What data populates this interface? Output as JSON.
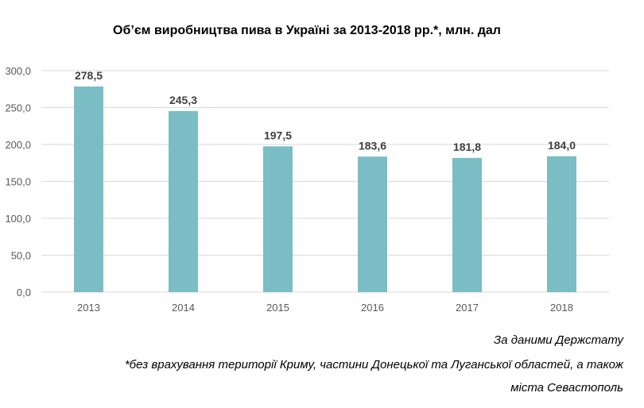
{
  "chart_data": {
    "type": "bar",
    "title": "Об’єм виробництва пива в Україні за 2013-2018 рр.*, млн. дал",
    "categories": [
      "2013",
      "2014",
      "2015",
      "2016",
      "2017",
      "2018"
    ],
    "values": [
      278.5,
      245.3,
      197.5,
      183.6,
      181.8,
      184.0
    ],
    "value_labels": [
      "278,5",
      "245,3",
      "197,5",
      "183,6",
      "181,8",
      "184,0"
    ],
    "yticks": [
      0,
      50,
      100,
      150,
      200,
      250,
      300
    ],
    "ytick_labels": [
      "0,0",
      "50,0",
      "100,0",
      "150,0",
      "200,0",
      "250,0",
      "300,0"
    ],
    "ylim": [
      0,
      300
    ],
    "xlabel": "",
    "ylabel": "",
    "grid": true,
    "bar_color": "#7bbdc4",
    "gridline_color": "#d9d9d9"
  },
  "notes": {
    "source": "За даними Держстату",
    "footnote_line1": "*без врахування території Криму, частини Донецької та Луганської областей, а також",
    "footnote_line2": "міста Севастополь"
  }
}
